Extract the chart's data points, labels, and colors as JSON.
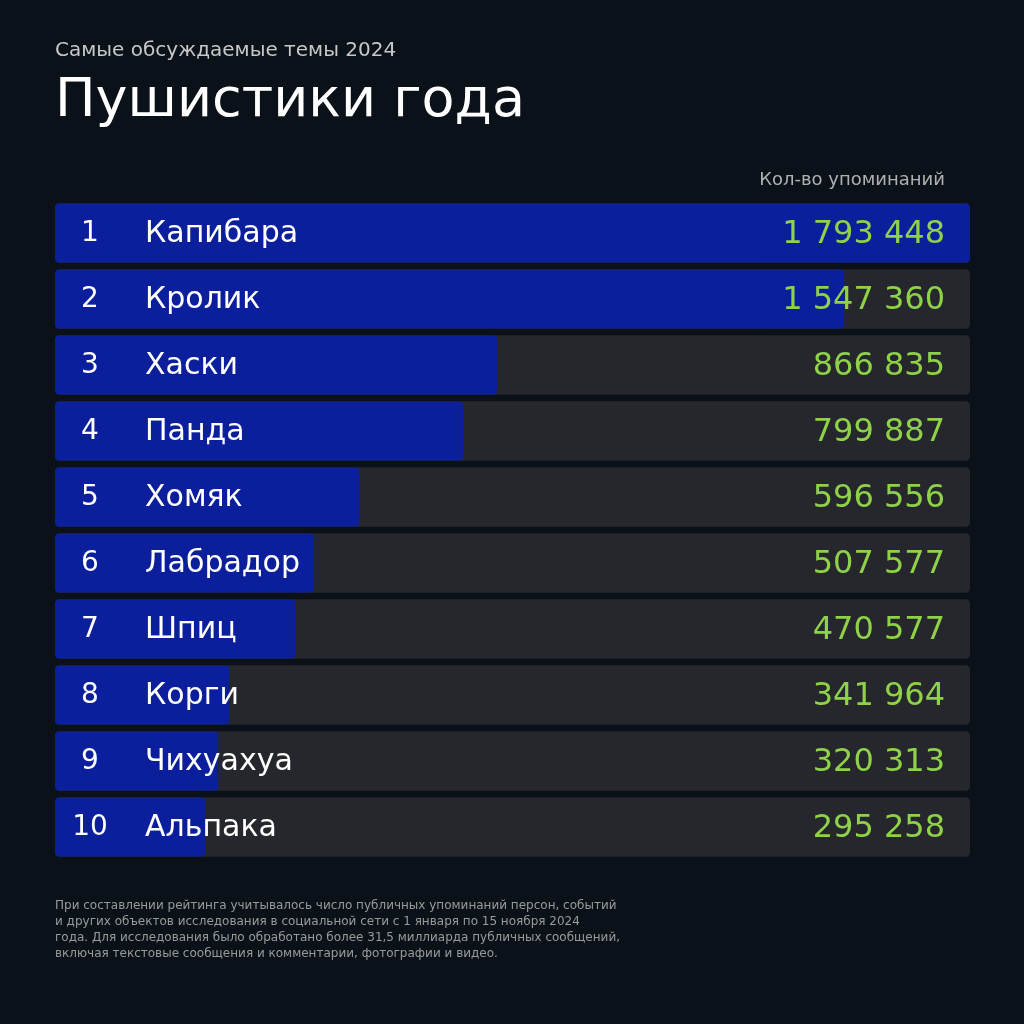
{
  "chart_data": {
    "type": "bar",
    "orientation": "horizontal",
    "title": "Пушистики года",
    "subtitle": "Самые обсуждаемые темы 2024",
    "xlabel": "Кол-во упоминаний",
    "categories": [
      "Капибара",
      "Кролик",
      "Хаски",
      "Панда",
      "Хомяк",
      "Лабрадор",
      "Шпиц",
      "Корги",
      "Чихуахуа",
      "Альпака"
    ],
    "values": [
      1793448,
      1547360,
      866835,
      799887,
      596556,
      507577,
      470577,
      341964,
      320313,
      295258
    ],
    "value_labels": [
      "1 793 448",
      "1 547 360",
      "866 835",
      "799 887",
      "596 556",
      "507 577",
      "470 577",
      "341 964",
      "320 313",
      "295 258"
    ],
    "color": "#0b1f9c",
    "annotations": [
      {
        "text": "1",
        "y": "Капибара"
      },
      {
        "text": "2",
        "y": "Кролик"
      },
      {
        "text": "3",
        "y": "Хаски"
      },
      {
        "text": "4",
        "y": "Панда"
      },
      {
        "text": "5",
        "y": "Хомяк"
      },
      {
        "text": "6",
        "y": "Лабрадор"
      },
      {
        "text": "7",
        "y": "Шпиц"
      },
      {
        "text": "8",
        "y": "Корги"
      },
      {
        "text": "9",
        "y": "Чихуахуа"
      },
      {
        "text": "10",
        "y": "Альпака"
      },
      "При составлении рейтинга учитывалось число публичных упоминаний персон, событий и других объектов исследования в социальной сети с 1 января по 15 ноября 2024 года. Для исследования было обработано более 31,5 миллиарда публичных сообщений, включая текстовые сообщения и комментарии, фотографии и видео."
    ]
  }
}
